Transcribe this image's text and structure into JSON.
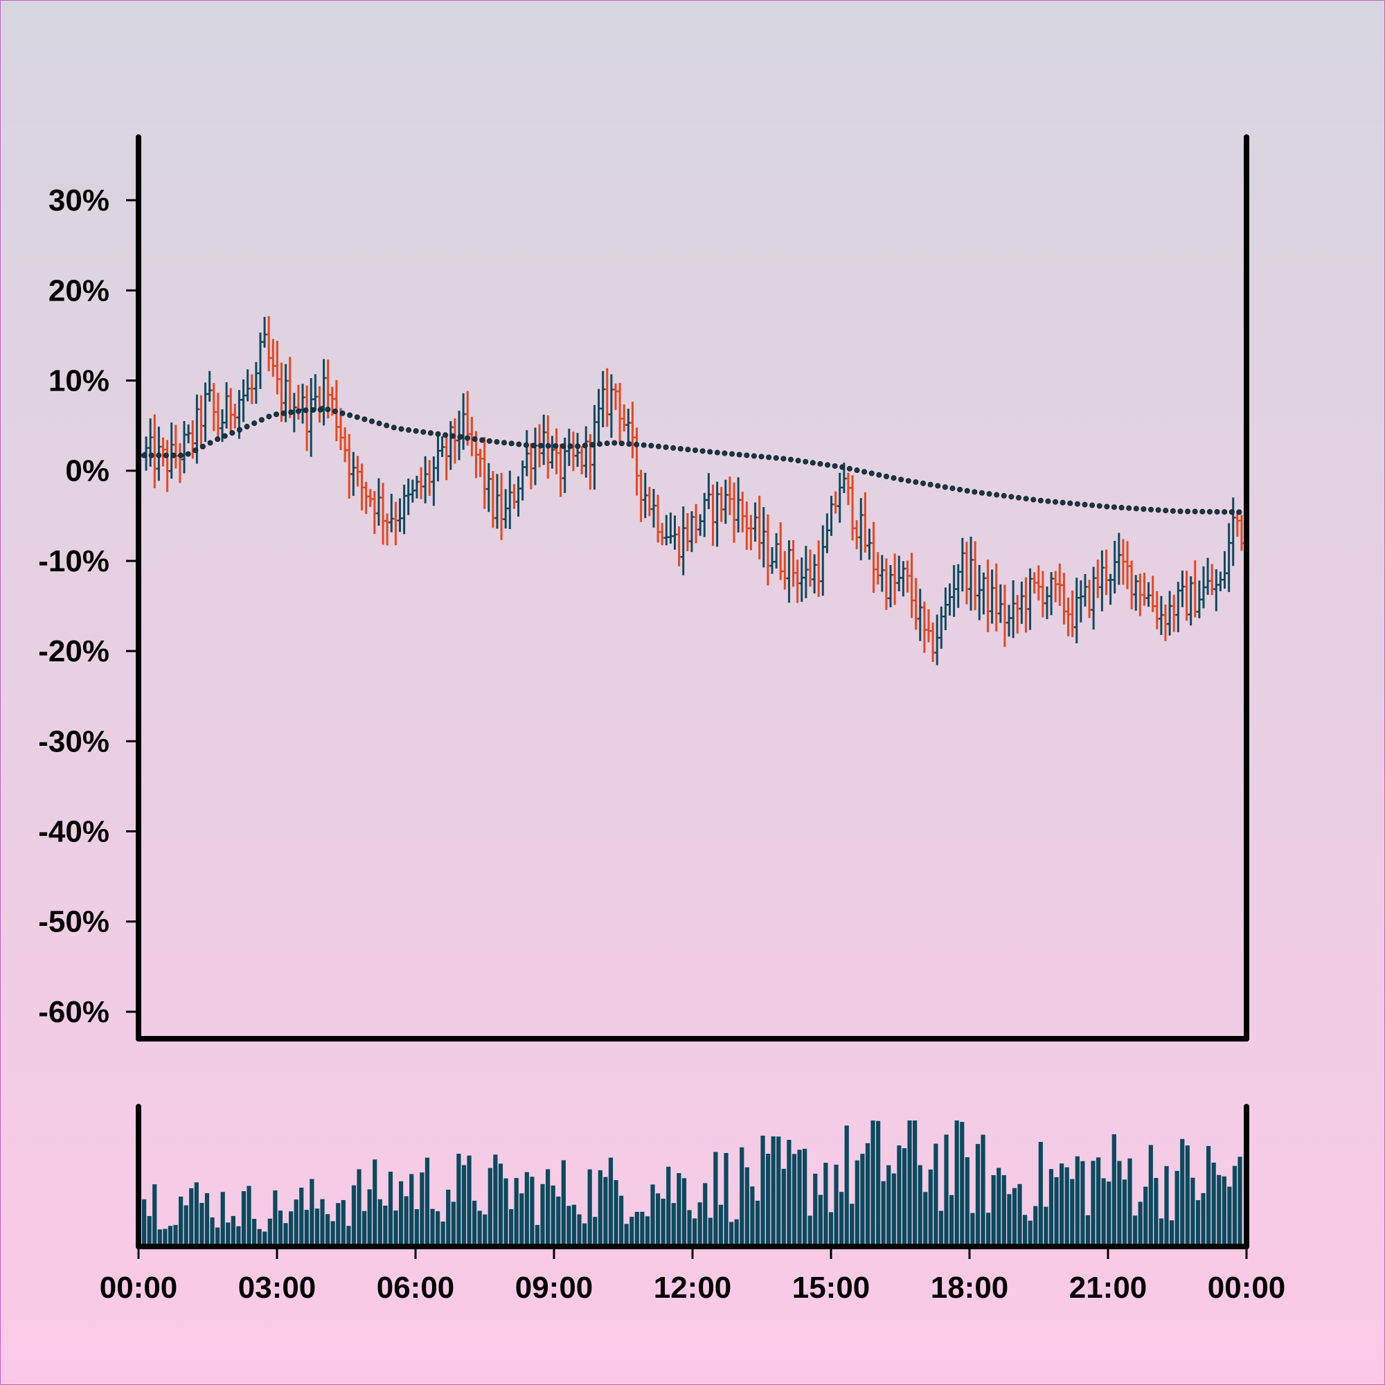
{
  "chart_data": {
    "type": "ohlc",
    "title": "",
    "xlabel": "",
    "ylabel": "",
    "y_unit": "%",
    "ylim": [
      -63,
      37
    ],
    "y_ticks": [
      "30%",
      "20%",
      "10%",
      "0%",
      "-10%",
      "-20%",
      "-30%",
      "-40%",
      "-50%",
      "-60%"
    ],
    "y_tick_values": [
      30,
      20,
      10,
      0,
      -10,
      -20,
      -30,
      -40,
      -50,
      -60
    ],
    "x_ticks": [
      "00:00",
      "03:00",
      "06:00",
      "09:00",
      "12:00",
      "15:00",
      "18:00",
      "21:00",
      "00:00"
    ],
    "x_range_hours": [
      0,
      24
    ],
    "grid": false,
    "legend": "none",
    "colors": {
      "up": "#0d4a5e",
      "down": "#e8451e",
      "moving_average": "#1c3545",
      "volume": "#0a4a5e",
      "axis": "#000000",
      "background_top": "#d6d6df",
      "background_bottom": "#fbc9e7"
    },
    "price_close_keyframes": [
      [
        0,
        2
      ],
      [
        0.5,
        1
      ],
      [
        1,
        3
      ],
      [
        1.4,
        8
      ],
      [
        1.6,
        5
      ],
      [
        2.0,
        8
      ],
      [
        2.4,
        9
      ],
      [
        2.6,
        14
      ],
      [
        2.9,
        9
      ],
      [
        3.3,
        8
      ],
      [
        3.6,
        6
      ],
      [
        3.9,
        10
      ],
      [
        4.2,
        6
      ],
      [
        4.6,
        -1
      ],
      [
        5.0,
        -3
      ],
      [
        5.3,
        -5
      ],
      [
        5.7,
        -4
      ],
      [
        6.0,
        -2
      ],
      [
        6.5,
        1
      ],
      [
        6.9,
        5
      ],
      [
        7.3,
        1
      ],
      [
        7.6,
        -4
      ],
      [
        7.9,
        -5
      ],
      [
        8.3,
        1
      ],
      [
        8.7,
        4
      ],
      [
        9.0,
        0
      ],
      [
        9.4,
        1
      ],
      [
        9.7,
        2
      ],
      [
        10.0,
        7
      ],
      [
        10.3,
        9
      ],
      [
        10.5,
        5
      ],
      [
        10.8,
        -1
      ],
      [
        11.2,
        -5
      ],
      [
        11.6,
        -8
      ],
      [
        12.0,
        -6
      ],
      [
        12.4,
        -4
      ],
      [
        12.8,
        -3
      ],
      [
        13.2,
        -6
      ],
      [
        13.6,
        -9
      ],
      [
        14.0,
        -10
      ],
      [
        14.4,
        -12
      ],
      [
        14.8,
        -10
      ],
      [
        15.2,
        -1
      ],
      [
        15.5,
        -5
      ],
      [
        15.9,
        -10
      ],
      [
        16.3,
        -13
      ],
      [
        16.6,
        -12
      ],
      [
        16.9,
        -16
      ],
      [
        17.1,
        -20
      ],
      [
        17.4,
        -17
      ],
      [
        17.8,
        -10
      ],
      [
        18.2,
        -13
      ],
      [
        18.6,
        -15
      ],
      [
        18.9,
        -17
      ],
      [
        19.2,
        -14
      ],
      [
        19.6,
        -13
      ],
      [
        19.9,
        -14
      ],
      [
        20.3,
        -16
      ],
      [
        20.6,
        -14
      ],
      [
        21.0,
        -11
      ],
      [
        21.4,
        -11
      ],
      [
        21.8,
        -13
      ],
      [
        22.2,
        -16
      ],
      [
        22.5,
        -15
      ],
      [
        22.9,
        -14
      ],
      [
        23.2,
        -13
      ],
      [
        23.5,
        -13
      ],
      [
        23.8,
        -5
      ],
      [
        24,
        -7
      ]
    ],
    "moving_average": {
      "x_hours": [
        0,
        0.9,
        1.6,
        2.2,
        2.8,
        3.5,
        4.0,
        4.6,
        5.5,
        6.5,
        7.5,
        8.4,
        9.4,
        10.2,
        11.0,
        12.5,
        14.0,
        15.2,
        16.5,
        18.0,
        19.5,
        21.0,
        22.5,
        24
      ],
      "values": [
        1.7,
        1.7,
        3.5,
        4.8,
        6.2,
        6.7,
        6.8,
        6.0,
        4.7,
        4.0,
        3.3,
        2.8,
        2.7,
        3.1,
        2.8,
        2.0,
        1.3,
        0.4,
        -1.0,
        -2.3,
        -3.3,
        -4.0,
        -4.5,
        -4.6
      ]
    },
    "volume_keyframes": [
      [
        0,
        0.4
      ],
      [
        3,
        0.3
      ],
      [
        6,
        0.5
      ],
      [
        9,
        0.45
      ],
      [
        12,
        0.5
      ],
      [
        15,
        0.6
      ],
      [
        17,
        0.75
      ],
      [
        19,
        0.5
      ],
      [
        21,
        0.6
      ],
      [
        24,
        0.55
      ]
    ]
  }
}
